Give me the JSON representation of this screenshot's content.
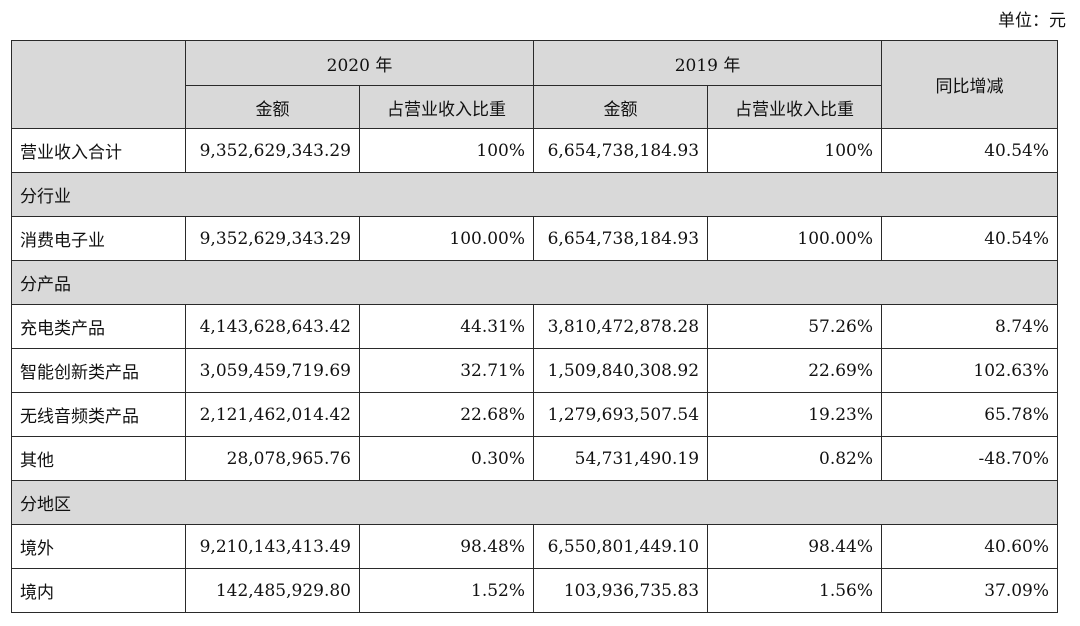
{
  "unit_label": "单位：元",
  "headers": {
    "year_2020": "2020 年",
    "year_2019": "2019 年",
    "yoy": "同比增减",
    "amount": "金额",
    "share": "占营业收入比重"
  },
  "rows": [
    {
      "type": "data",
      "label": "营业收入合计",
      "amt2020": "9,352,629,343.29",
      "pct2020": "100%",
      "amt2019": "6,654,738,184.93",
      "pct2019": "100%",
      "yoy": "40.54%"
    },
    {
      "type": "group",
      "label": "分行业"
    },
    {
      "type": "data",
      "label": "消费电子业",
      "amt2020": "9,352,629,343.29",
      "pct2020": "100.00%",
      "amt2019": "6,654,738,184.93",
      "pct2019": "100.00%",
      "yoy": "40.54%"
    },
    {
      "type": "group",
      "label": "分产品"
    },
    {
      "type": "data",
      "label": "充电类产品",
      "amt2020": "4,143,628,643.42",
      "pct2020": "44.31%",
      "amt2019": "3,810,472,878.28",
      "pct2019": "57.26%",
      "yoy": "8.74%"
    },
    {
      "type": "data",
      "label": "智能创新类产品",
      "amt2020": "3,059,459,719.69",
      "pct2020": "32.71%",
      "amt2019": "1,509,840,308.92",
      "pct2019": "22.69%",
      "yoy": "102.63%"
    },
    {
      "type": "data",
      "label": "无线音频类产品",
      "amt2020": "2,121,462,014.42",
      "pct2020": "22.68%",
      "amt2019": "1,279,693,507.54",
      "pct2019": "19.23%",
      "yoy": "65.78%"
    },
    {
      "type": "data",
      "label": "其他",
      "amt2020": "28,078,965.76",
      "pct2020": "0.30%",
      "amt2019": "54,731,490.19",
      "pct2019": "0.82%",
      "yoy": "-48.70%"
    },
    {
      "type": "group",
      "label": "分地区"
    },
    {
      "type": "data",
      "label": "境外",
      "amt2020": "9,210,143,413.49",
      "pct2020": "98.48%",
      "amt2019": "6,550,801,449.10",
      "pct2019": "98.44%",
      "yoy": "40.60%"
    },
    {
      "type": "data",
      "label": "境内",
      "amt2020": "142,485,929.80",
      "pct2020": "1.52%",
      "amt2019": "103,936,735.83",
      "pct2019": "1.56%",
      "yoy": "37.09%"
    }
  ]
}
